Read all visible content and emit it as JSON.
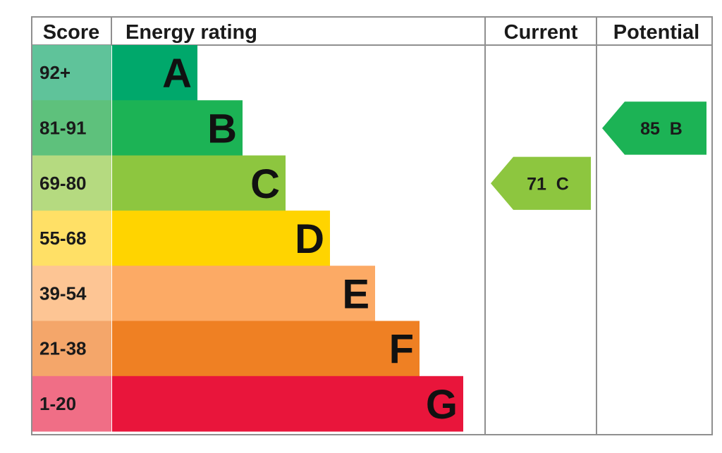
{
  "chart_data": {
    "type": "bar",
    "headers": {
      "score": "Score",
      "rating": "Energy rating",
      "current": "Current",
      "potential": "Potential"
    },
    "bands": [
      {
        "letter": "A",
        "score_label": "92+",
        "min": 92,
        "max": 100,
        "color": "#00a86b",
        "score_bg": "#5fc39a"
      },
      {
        "letter": "B",
        "score_label": "81-91",
        "min": 81,
        "max": 91,
        "color": "#1cb355",
        "score_bg": "#5ec17c"
      },
      {
        "letter": "C",
        "score_label": "69-80",
        "min": 69,
        "max": 80,
        "color": "#8dc63f",
        "score_bg": "#b5da80"
      },
      {
        "letter": "D",
        "score_label": "55-68",
        "min": 55,
        "max": 68,
        "color": "#ffd400",
        "score_bg": "#ffe066"
      },
      {
        "letter": "E",
        "score_label": "39-54",
        "min": 39,
        "max": 54,
        "color": "#fcaa65",
        "score_bg": "#fdc594"
      },
      {
        "letter": "F",
        "score_label": "21-38",
        "min": 21,
        "max": 38,
        "color": "#ef8023",
        "score_bg": "#f4a66a"
      },
      {
        "letter": "G",
        "score_label": "1-20",
        "min": 1,
        "max": 20,
        "color": "#e9153b",
        "score_bg": "#f06e86"
      }
    ],
    "current": {
      "score": 71,
      "letter": "C",
      "label": "71  C",
      "color": "#8dc63f"
    },
    "potential": {
      "score": 85,
      "letter": "B",
      "label": "85  B",
      "color": "#1cb355"
    }
  }
}
